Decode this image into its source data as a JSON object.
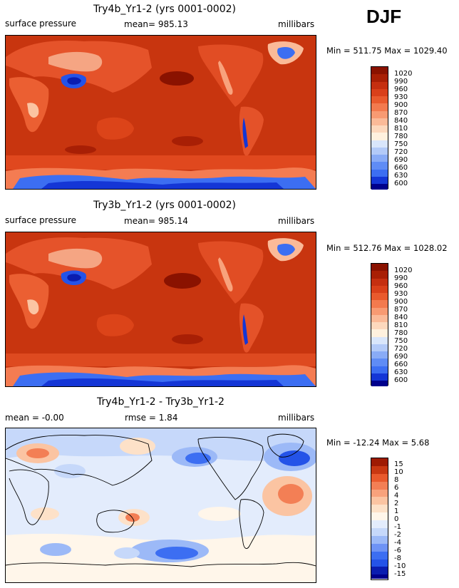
{
  "season": "DJF",
  "colors": {
    "pressure_scale": [
      "#fbfbfb",
      "#00008c",
      "#0a1db0",
      "#1436d6",
      "#2453e8",
      "#3c6ef2",
      "#5f8cf5",
      "#89abf6",
      "#b3caf8",
      "#d9e6fb",
      "#fff1de",
      "#fdd8bd",
      "#fbba98",
      "#f89a72",
      "#f37a4e",
      "#e95a2d",
      "#d9401a",
      "#c52f10",
      "#a81f05",
      "#8a1200"
    ],
    "diff_scale": [
      "#00008c",
      "#0a1db0",
      "#1436d6",
      "#2453e8",
      "#3c6ef2",
      "#6e93f5",
      "#9cb9f7",
      "#c6d8fa",
      "#e3ecfc",
      "#fff6ea",
      "#fde1c8",
      "#fbc4a2",
      "#f8a27c",
      "#f37f55",
      "#e95a2d",
      "#c83812",
      "#9e1b03"
    ]
  },
  "chart_data": [
    {
      "type": "heatmap",
      "id": "panel-1",
      "title": "Try4b_Yr1-2 (yrs 0001-0002)",
      "variable": "surface pressure",
      "stat_text": "mean= 985.13",
      "units": "millibars",
      "min_max_text": "Min = 511.75 Max = 1029.40",
      "min": 511.75,
      "max": 1029.4,
      "mean": 985.13,
      "colorbar_levels": [
        "1020",
        "990",
        "960",
        "930",
        "900",
        "870",
        "840",
        "810",
        "780",
        "750",
        "720",
        "690",
        "660",
        "630",
        "600"
      ]
    },
    {
      "type": "heatmap",
      "id": "panel-2",
      "title": "Try3b_Yr1-2 (yrs 0001-0002)",
      "variable": "surface pressure",
      "stat_text": "mean= 985.14",
      "units": "millibars",
      "min_max_text": "Min = 512.76 Max = 1028.02",
      "min": 512.76,
      "max": 1028.02,
      "mean": 985.14,
      "colorbar_levels": [
        "1020",
        "990",
        "960",
        "930",
        "900",
        "870",
        "840",
        "810",
        "780",
        "750",
        "720",
        "690",
        "660",
        "630",
        "600"
      ]
    },
    {
      "type": "heatmap",
      "id": "panel-3",
      "title": "Try4b_Yr1-2 - Try3b_Yr1-2",
      "variable": "mean =   -0.00",
      "stat_text": "rmse =    1.84",
      "units": "millibars",
      "min_max_text": "Min = -12.24 Max =    5.68",
      "min": -12.24,
      "max": 5.68,
      "mean": -0.0,
      "rmse": 1.84,
      "colorbar_levels": [
        "15",
        "10",
        "8",
        "6",
        "4",
        "2",
        "1",
        "0",
        "-1",
        "-2",
        "-4",
        "-6",
        "-8",
        "-10",
        "-15"
      ]
    }
  ]
}
